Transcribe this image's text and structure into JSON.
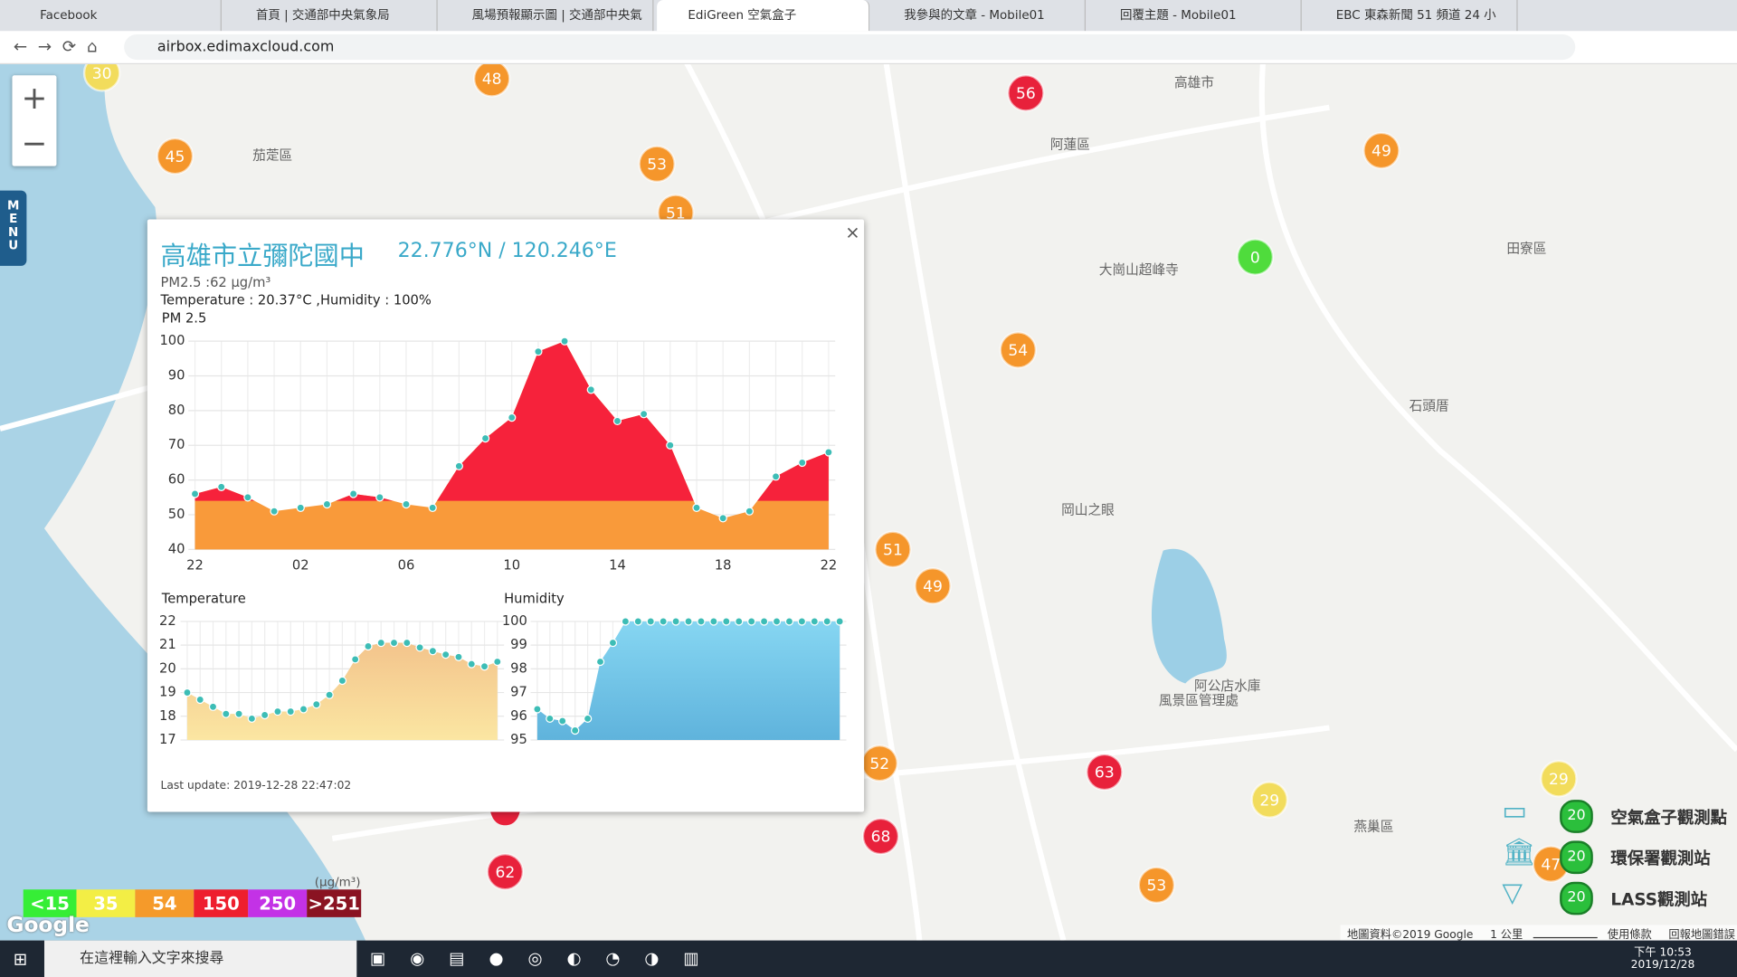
{
  "browser": {
    "tabs": [
      "Facebook",
      "首頁 | 交通部中央氣象局",
      "風場預報顯示圖 | 交通部中央氣",
      "EdiGreen 空氣盒子",
      "我參與的文章 - Mobile01",
      "回覆主題 - Mobile01",
      "EBC 東森新聞 51 頻道 24 小"
    ],
    "url": "airbox.edimaxcloud.com"
  },
  "map": {
    "menu": "MENU",
    "zoom_in": "+",
    "zoom_out": "−",
    "places": [
      "茄萣區",
      "阿蓮區",
      "田寮區",
      "大崗山超峰寺",
      "石頭厝",
      "岡山之眼",
      "阿公店水庫",
      "風景區管理處",
      "燕巢區",
      "高雄市"
    ],
    "markers": [
      {
        "value": 30,
        "color": "#f2dc5c"
      },
      {
        "value": 48,
        "color": "#f5962b"
      },
      {
        "value": 56,
        "color": "#e8213b"
      },
      {
        "value": 45,
        "color": "#f5962b"
      },
      {
        "value": 53,
        "color": "#f5962b"
      },
      {
        "value": 51,
        "color": "#f5962b"
      },
      {
        "value": 49,
        "color": "#f5962b"
      },
      {
        "value": 0,
        "color": "#4fdc3c"
      },
      {
        "value": 54,
        "color": "#f5962b"
      },
      {
        "value": 51,
        "color": "#f5962b"
      },
      {
        "value": 49,
        "color": "#f5962b"
      },
      {
        "value": 52,
        "color": "#f5962b"
      },
      {
        "value": 63,
        "color": "#e8213b"
      },
      {
        "value": 68,
        "color": "#e8213b"
      },
      {
        "value": 29,
        "color": "#f2dc5c"
      },
      {
        "value": 29,
        "color": "#f2dc5c"
      },
      {
        "value": 53,
        "color": "#f5962b"
      },
      {
        "value": 62,
        "color": "#e8213b"
      },
      {
        "value": 47,
        "color": "#f5962b"
      }
    ]
  },
  "popup": {
    "title": "高雄市立彌陀國中",
    "coords": "22.776°N / 120.246°E",
    "pm25": "PM2.5 :62 μg/m³",
    "temp_humidity": "Temperature : 20.37°C ,Humidity : 100%",
    "last_update": "Last update: 2019-12-28 22:47:02"
  },
  "chart_data": [
    {
      "type": "area",
      "title": "PM 2.5",
      "categories": [
        "22",
        null,
        null,
        null,
        "02",
        null,
        null,
        null,
        "06",
        null,
        null,
        null,
        "10",
        null,
        null,
        null,
        "14",
        null,
        null,
        null,
        "18",
        null,
        null,
        null,
        "22"
      ],
      "values": [
        56,
        58,
        55,
        51,
        52,
        53,
        56,
        55,
        53,
        52,
        64,
        72,
        78,
        97,
        100,
        86,
        77,
        79,
        70,
        52,
        49,
        51,
        61,
        65,
        68
      ],
      "ylim": [
        40,
        100
      ],
      "yticks": [
        40,
        50,
        60,
        70,
        80,
        90,
        100
      ],
      "colors": [
        "#f99a3a",
        "#f6223b"
      ],
      "point_color": "#3dbdb6",
      "grid": true
    },
    {
      "type": "area",
      "title": "Temperature",
      "values": [
        19.0,
        18.7,
        18.4,
        18.1,
        18.1,
        17.9,
        18.05,
        18.2,
        18.2,
        18.3,
        18.5,
        18.9,
        19.5,
        20.4,
        20.95,
        21.1,
        21.1,
        21.1,
        20.9,
        20.75,
        20.6,
        20.5,
        20.2,
        20.1,
        20.3
      ],
      "ylim": [
        17,
        22
      ],
      "yticks": [
        17,
        18,
        19,
        20,
        21,
        22
      ],
      "colors": [
        "#fbe6a2",
        "#f3c48c"
      ],
      "point_color": "#3dbdb6",
      "grid": true
    },
    {
      "type": "area",
      "title": "Humidity",
      "values": [
        96.3,
        95.9,
        95.8,
        95.4,
        95.9,
        98.3,
        99.1,
        100,
        100,
        100,
        100,
        100,
        100,
        100,
        100,
        100,
        100,
        100,
        100,
        100,
        100,
        100,
        100,
        100,
        100
      ],
      "ylim": [
        95,
        100
      ],
      "yticks": [
        95,
        96,
        97,
        98,
        99,
        100
      ],
      "colors": [
        "#5fb3dc",
        "#86d6f2"
      ],
      "point_color": "#3dbdb6",
      "grid": true
    }
  ],
  "legend": {
    "unit": "(μg/m³)",
    "scale": [
      {
        "label": "<15",
        "color": "#36ee36"
      },
      {
        "label": "35",
        "color": "#f3ee45"
      },
      {
        "label": "54",
        "color": "#f59a2a"
      },
      {
        "label": "150",
        "color": "#ee1f2e"
      },
      {
        "label": "250",
        "color": "#c332e6"
      },
      {
        "label": ">251",
        "color": "#8a1322"
      }
    ],
    "stations": [
      {
        "label": "空氣盒子觀測點",
        "badge": "20"
      },
      {
        "label": "環保署觀測站",
        "badge": "20"
      },
      {
        "label": "LASS觀測站",
        "badge": "20"
      }
    ]
  },
  "footer": {
    "google": "Google",
    "attribution": "地圖資料©2019 Google",
    "scale": "1 公里",
    "terms": "使用條款",
    "report": "回報地圖錯誤"
  },
  "taskbar": {
    "search": "在這裡輸入文字來搜尋",
    "time": "下午 10:53",
    "date": "2019/12/28"
  }
}
